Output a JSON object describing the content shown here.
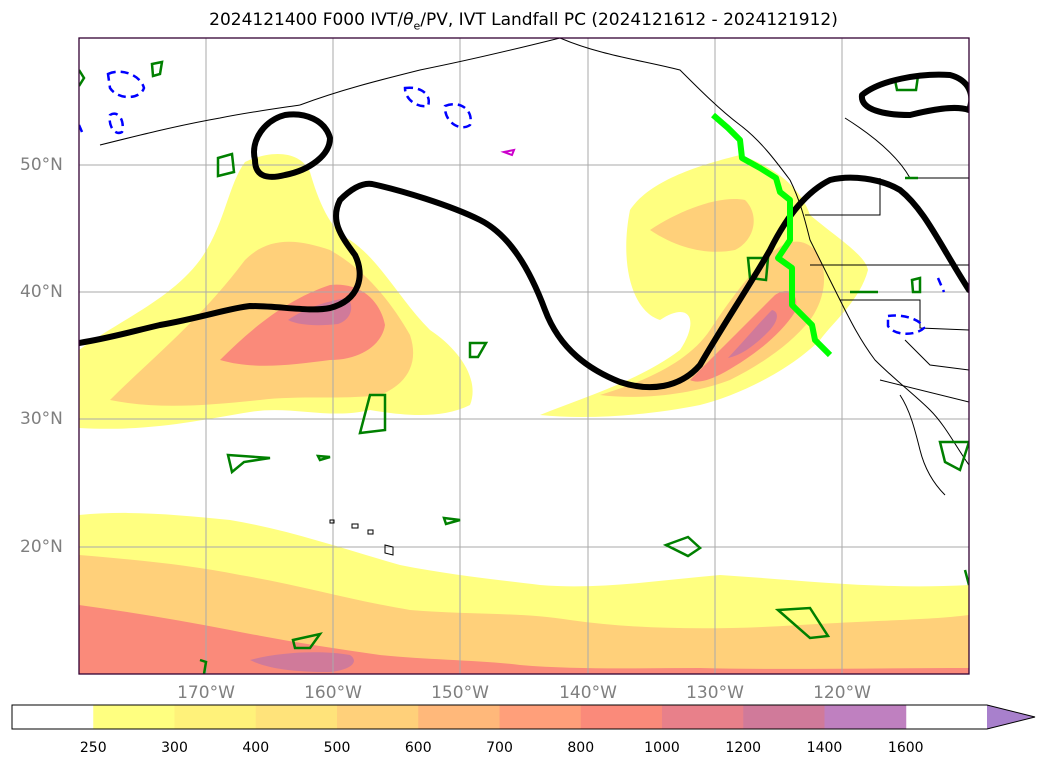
{
  "title_prefix": "2024121400 F000 IVT/",
  "title_theta": "θ",
  "title_sub": "e",
  "title_suffix": "/PV, IVT Landfall PC (2024121612 - 2024121912)",
  "lat_labels": [
    "50°N",
    "40°N",
    "30°N",
    "20°N"
  ],
  "lon_labels": [
    "170°W",
    "160°W",
    "150°W",
    "140°W",
    "130°W",
    "120°W"
  ],
  "colorbar": {
    "ticks": [
      "250",
      "300",
      "400",
      "500",
      "600",
      "700",
      "800",
      "1000",
      "1200",
      "1400",
      "1600"
    ],
    "colors": [
      "#ffffff",
      "#ffff80",
      "#fff27a",
      "#ffe37a",
      "#ffd07a",
      "#ffb87a",
      "#ff9f7a",
      "#fa8a7a",
      "#e8808a",
      "#d07a9a",
      "#bf80c0",
      "#a880cc"
    ]
  },
  "colors": {
    "ivt_low": "#ffff80",
    "ivt_mid": "#ffd07a",
    "ivt_high": "#fa8a7a",
    "ivt_max": "#d07a9a",
    "theta_contour": "#000000",
    "pv_positive": "#008000",
    "pv_negative": "#0000ff",
    "landfall_line": "#00ff00",
    "coastline": "#000000",
    "gridline": "#aaaaaa"
  }
}
